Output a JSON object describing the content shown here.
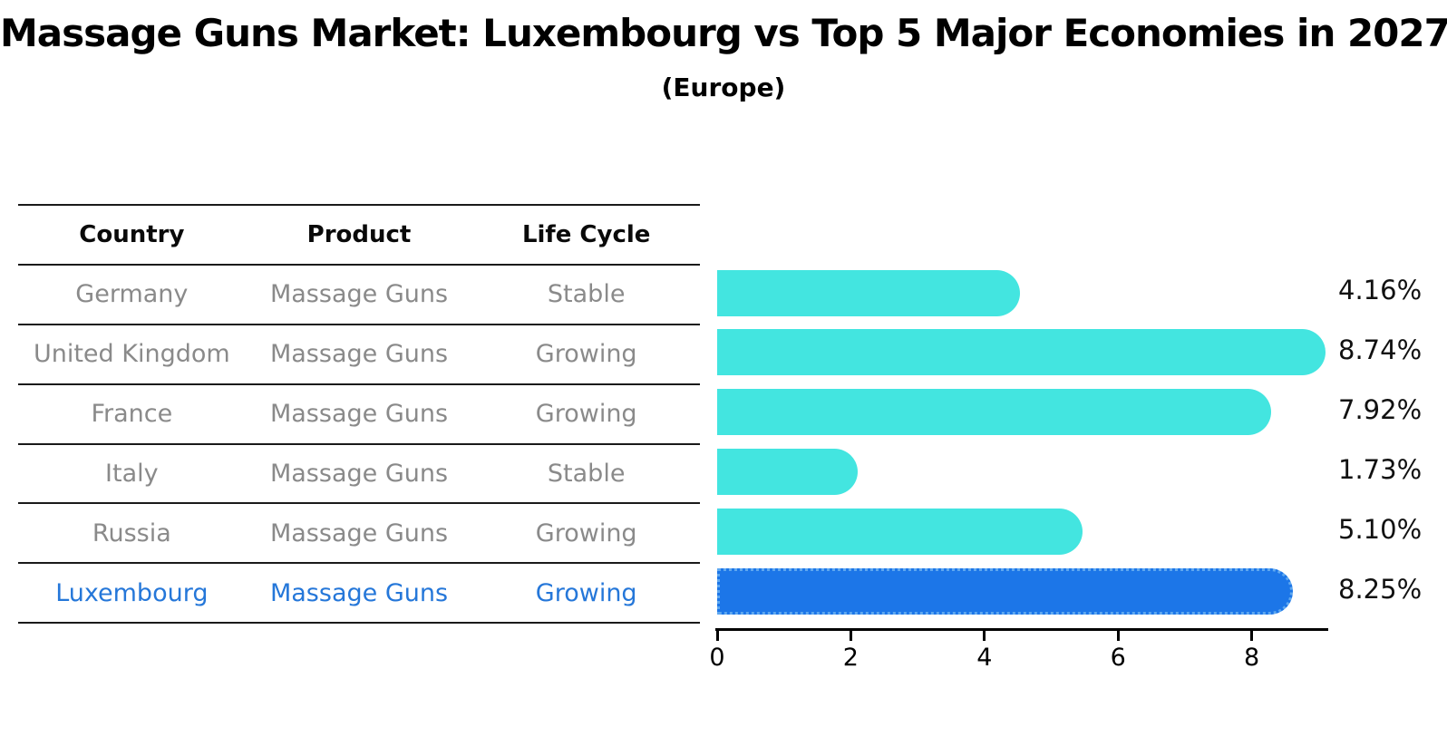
{
  "title": "Massage Guns Market: Luxembourg vs Top 5 Major Economies in 2027",
  "subtitle": "(Europe)",
  "table": {
    "headers": [
      "Country",
      "Product",
      "Life Cycle"
    ],
    "rows": [
      {
        "country": "Germany",
        "product": "Massage Guns",
        "life_cycle": "Stable",
        "highlight": false
      },
      {
        "country": "United Kingdom",
        "product": "Massage Guns",
        "life_cycle": "Growing",
        "highlight": false
      },
      {
        "country": "France",
        "product": "Massage Guns",
        "life_cycle": "Growing",
        "highlight": false
      },
      {
        "country": "Italy",
        "product": "Massage Guns",
        "life_cycle": "Stable",
        "highlight": false
      },
      {
        "country": "Russia",
        "product": "Massage Guns",
        "life_cycle": "Growing",
        "highlight": false
      },
      {
        "country": "Luxembourg",
        "product": "Massage Guns",
        "life_cycle": "Growing",
        "highlight": true
      }
    ]
  },
  "chart_data": {
    "type": "bar",
    "orientation": "horizontal",
    "title": "Massage Guns Market: Luxembourg vs Top 5 Major Economies in 2027",
    "subtitle": "(Europe)",
    "categories": [
      "Germany",
      "United Kingdom",
      "France",
      "Italy",
      "Russia",
      "Luxembourg"
    ],
    "values": [
      4.16,
      8.74,
      7.92,
      1.73,
      5.1,
      8.25
    ],
    "value_labels": [
      "4.16%",
      "8.74%",
      "7.92%",
      "1.73%",
      "5.10%",
      "8.25%"
    ],
    "xlabel": "",
    "ylabel": "",
    "xticks": [
      0,
      2,
      4,
      6,
      8
    ],
    "xlim": [
      0,
      9.15
    ],
    "grid": false,
    "legend": false,
    "bar_color": "#43E5E0",
    "highlight_color": "#1C76E8",
    "highlight_edge_color": "#5FA8F0",
    "highlight_index": 5
  },
  "colors": {
    "muted_text": "#8A8A8A",
    "highlight_text": "#2577D9",
    "table_line": "#1A1A1A",
    "axis": "#000000",
    "value_label_text": "#111111"
  }
}
